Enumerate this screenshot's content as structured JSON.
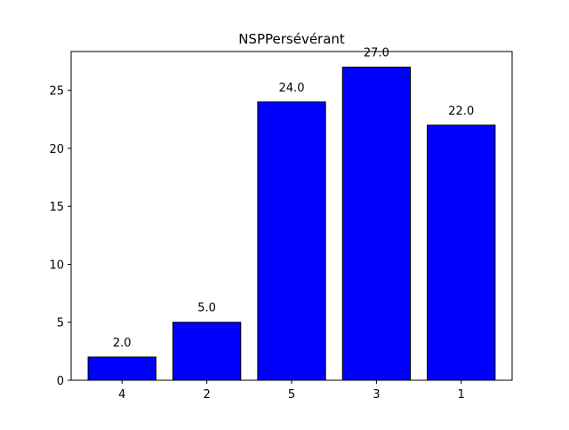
{
  "chart_data": {
    "type": "bar",
    "title": "NSPPersévérant",
    "xlabel": "",
    "ylabel": "",
    "categories": [
      "4",
      "2",
      "5",
      "3",
      "1"
    ],
    "values": [
      2,
      5,
      24,
      27,
      22
    ],
    "data_labels": [
      "2.0",
      "5.0",
      "24.0",
      "27.0",
      "22.0"
    ],
    "ylim": [
      0,
      28.35
    ],
    "yticks": [
      0,
      5,
      10,
      15,
      20,
      25
    ],
    "ytick_labels": [
      "0",
      "5",
      "10",
      "15",
      "20",
      "25"
    ],
    "grid": false,
    "legend": "none",
    "bar_color": "#0000ff",
    "bar_edge_color": "#000000"
  }
}
